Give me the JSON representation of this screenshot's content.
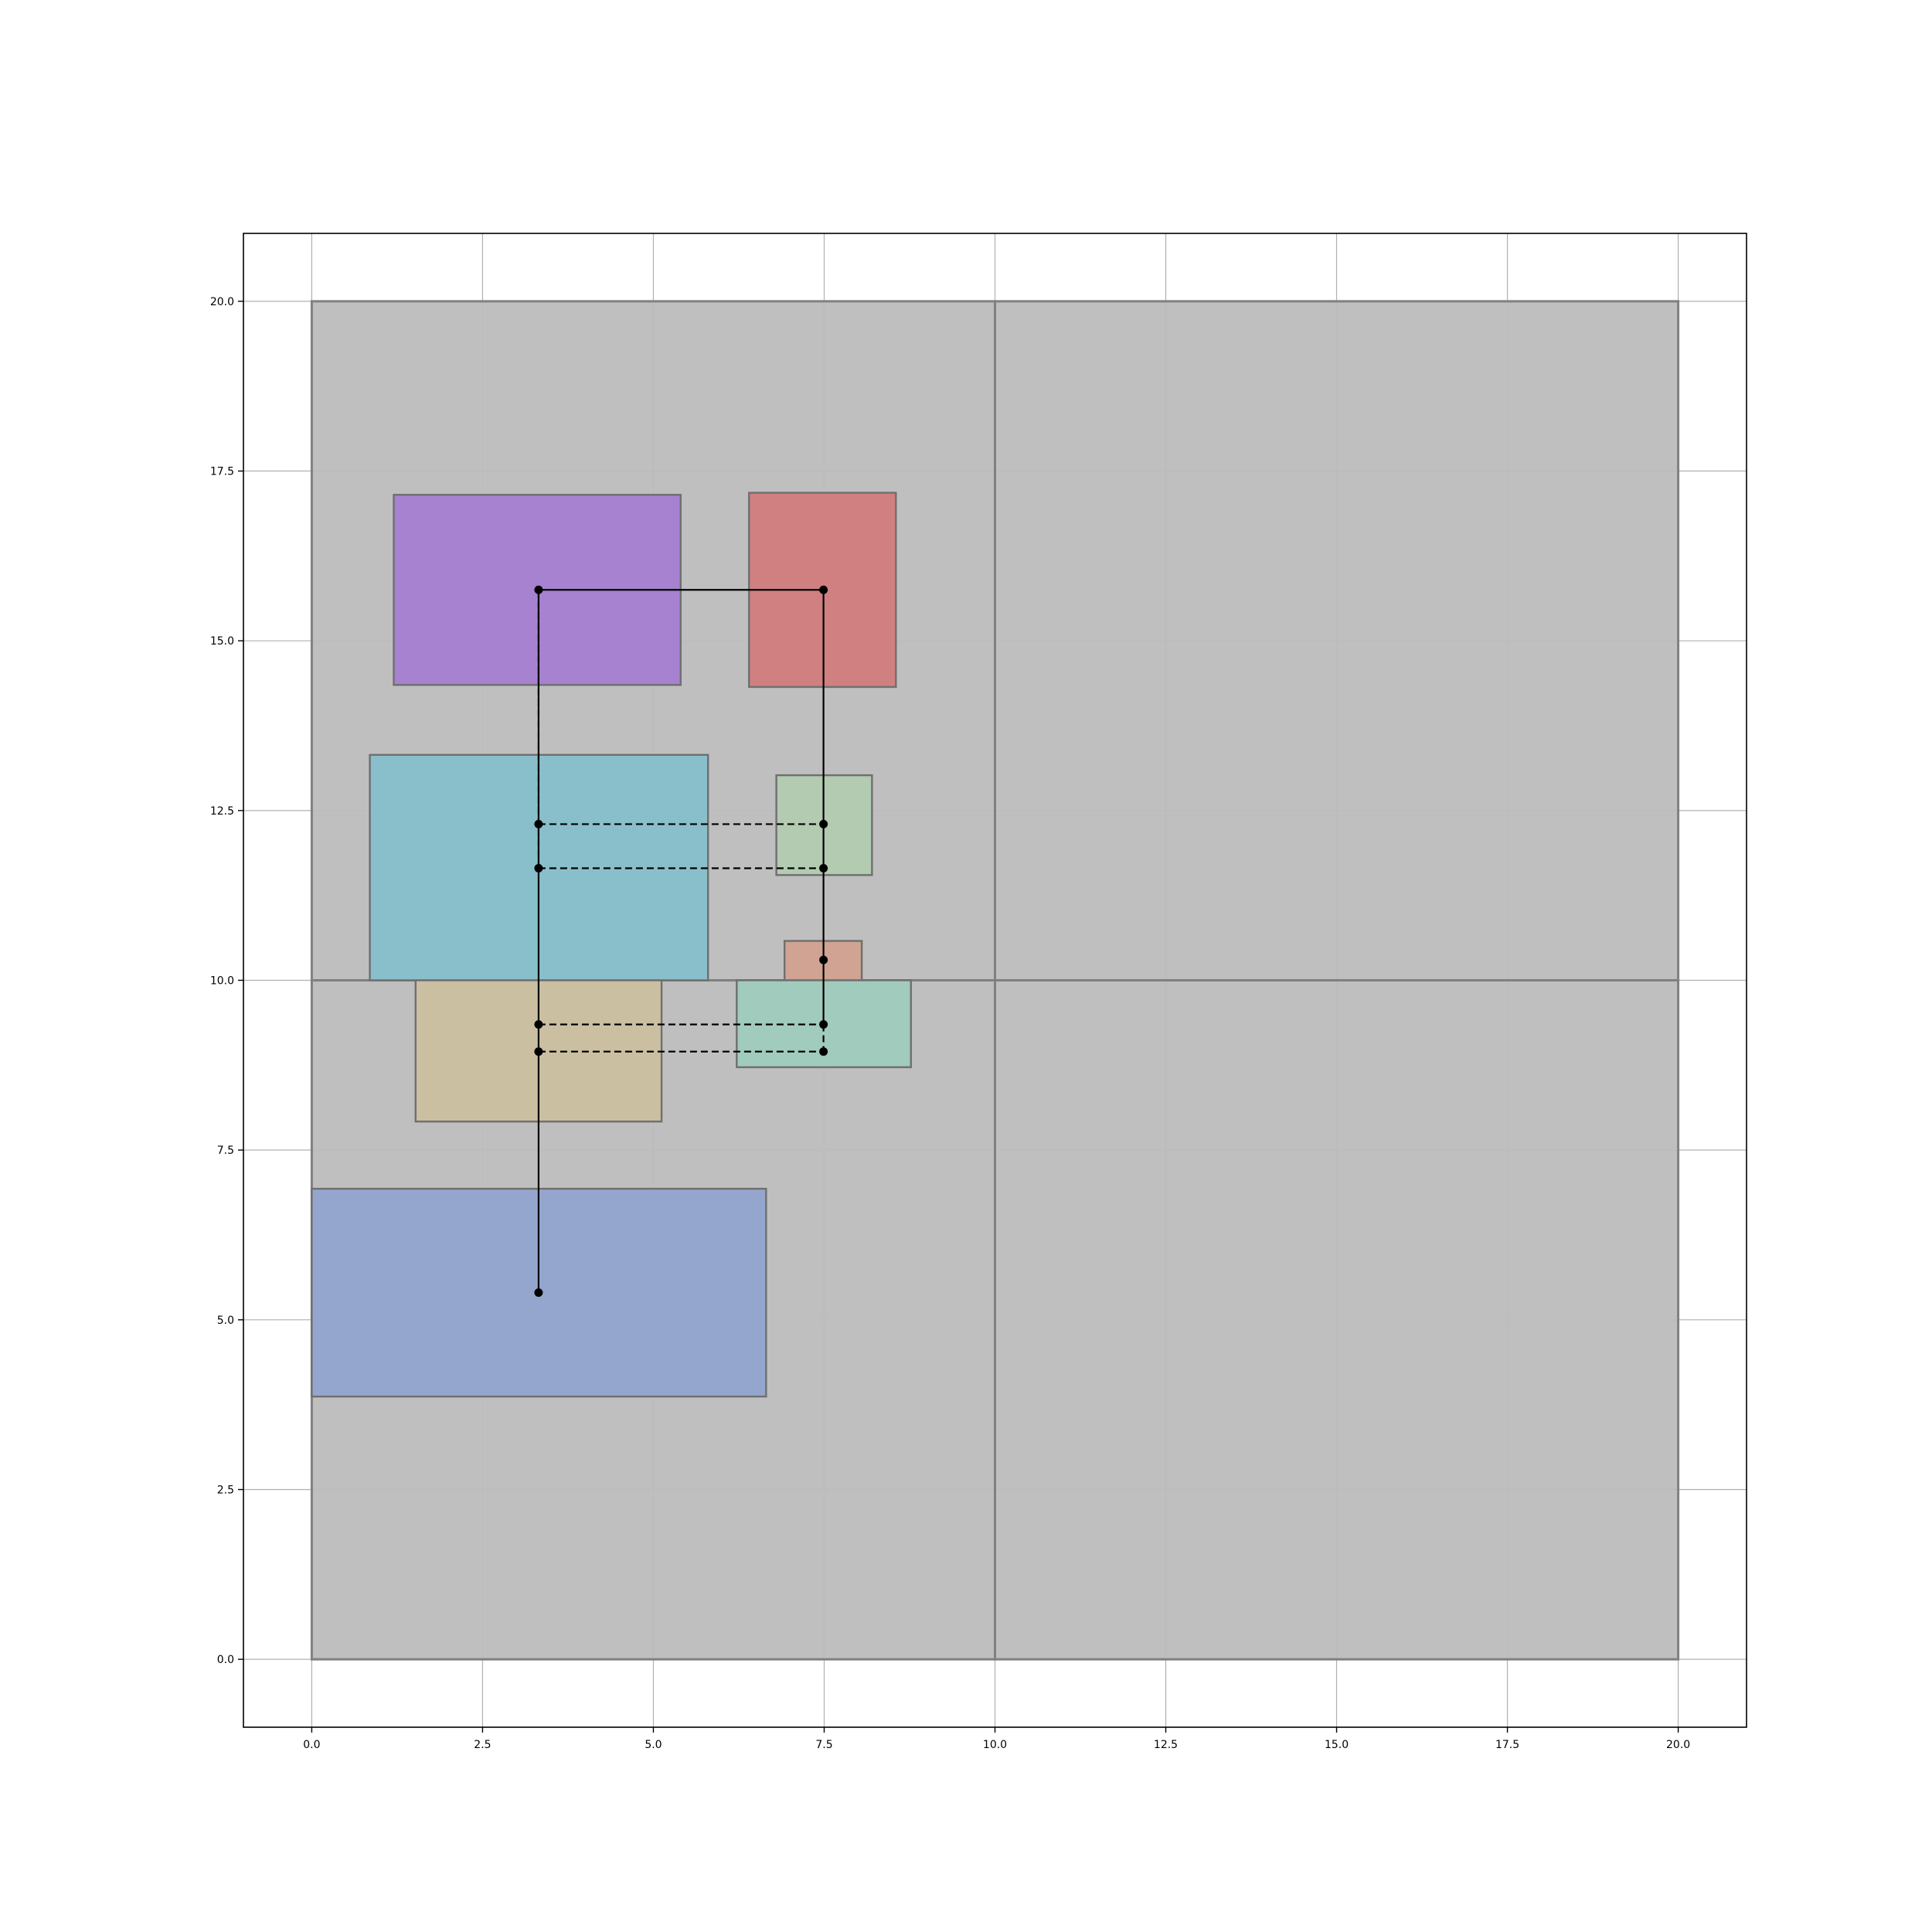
{
  "chart_data": {
    "type": "diagram",
    "xlim": [
      -1.0,
      21.0
    ],
    "ylim": [
      -1.0,
      21.0
    ],
    "grid": true,
    "x_ticks": [
      0.0,
      2.5,
      5.0,
      7.5,
      10.0,
      12.5,
      15.0,
      17.5,
      20.0
    ],
    "y_ticks": [
      0.0,
      2.5,
      5.0,
      7.5,
      10.0,
      12.5,
      15.0,
      17.5,
      20.0
    ],
    "x_tick_labels": [
      "0.0",
      "2.5",
      "5.0",
      "7.5",
      "10.0",
      "12.5",
      "15.0",
      "17.5",
      "20.0"
    ],
    "y_tick_labels": [
      "0.0",
      "2.5",
      "5.0",
      "7.5",
      "10.0",
      "12.5",
      "15.0",
      "17.5",
      "20.0"
    ],
    "regions": [
      {
        "x0": 0,
        "y0": 0,
        "x1": 10,
        "y1": 10,
        "color": "#bcbcbc"
      },
      {
        "x0": 10,
        "y0": 0,
        "x1": 20,
        "y1": 10,
        "color": "#bcbcbc"
      },
      {
        "x0": 0,
        "y0": 10,
        "x1": 10,
        "y1": 20,
        "color": "#bcbcbc"
      },
      {
        "x0": 10,
        "y0": 10,
        "x1": 20,
        "y1": 20,
        "color": "#bcbcbc"
      }
    ],
    "blocks": [
      {
        "x0": 1.2,
        "y0": 14.35,
        "x1": 5.4,
        "y1": 17.15,
        "color": "#a782d0"
      },
      {
        "x0": 6.4,
        "y0": 14.32,
        "x1": 8.55,
        "y1": 17.18,
        "color": "#d08080"
      },
      {
        "x0": 0.85,
        "y0": 10.0,
        "x1": 5.8,
        "y1": 13.32,
        "color": "#89bfca"
      },
      {
        "x0": 6.8,
        "y0": 11.55,
        "x1": 8.2,
        "y1": 13.02,
        "color": "#b3cbb1"
      },
      {
        "x0": 6.92,
        "y0": 10.0,
        "x1": 8.05,
        "y1": 10.58,
        "color": "#d0a393"
      },
      {
        "x0": 1.52,
        "y0": 7.92,
        "x1": 5.12,
        "y1": 10.0,
        "color": "#cbbfa2"
      },
      {
        "x0": 6.22,
        "y0": 8.72,
        "x1": 8.77,
        "y1": 10.0,
        "color": "#a0cbbd"
      },
      {
        "x0": 0.0,
        "y0": 3.87,
        "x1": 6.65,
        "y1": 6.93,
        "color": "#95a6ce"
      }
    ],
    "points": [
      [
        3.32,
        15.75
      ],
      [
        7.49,
        15.75
      ],
      [
        3.32,
        12.3
      ],
      [
        7.49,
        12.3
      ],
      [
        3.32,
        11.65
      ],
      [
        7.49,
        11.65
      ],
      [
        7.49,
        10.3
      ],
      [
        3.32,
        9.35
      ],
      [
        7.49,
        9.35
      ],
      [
        3.32,
        8.95
      ],
      [
        7.49,
        8.95
      ],
      [
        3.32,
        5.4
      ]
    ],
    "solid_paths": [
      [
        [
          3.32,
          5.4
        ],
        [
          3.32,
          11.65
        ]
      ],
      [
        [
          3.32,
          11.65
        ],
        [
          3.32,
          15.75
        ],
        [
          7.49,
          15.75
        ],
        [
          7.49,
          9.35
        ]
      ]
    ],
    "dashed_paths": [
      [
        [
          3.32,
          11.65
        ],
        [
          3.32,
          15.75
        ]
      ],
      [
        [
          3.32,
          12.3
        ],
        [
          7.49,
          12.3
        ]
      ],
      [
        [
          3.32,
          11.65
        ],
        [
          7.49,
          11.65
        ]
      ],
      [
        [
          3.32,
          9.35
        ],
        [
          7.49,
          9.35
        ]
      ],
      [
        [
          3.32,
          8.95
        ],
        [
          7.49,
          8.95
        ]
      ],
      [
        [
          7.49,
          9.35
        ],
        [
          7.49,
          8.95
        ]
      ]
    ],
    "colors": {
      "region_edge": "#808080",
      "block_edge": "#6f6f6f",
      "grid": "#b0b0b0",
      "path": "#000000"
    }
  }
}
